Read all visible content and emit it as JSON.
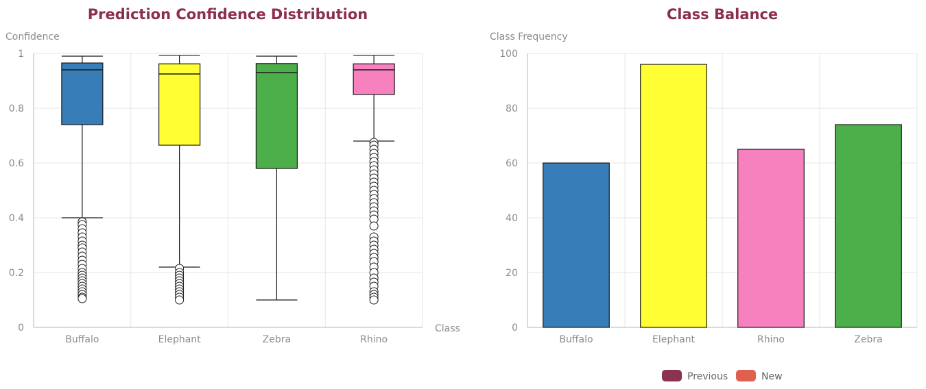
{
  "colors": {
    "title": "#8b2e4f",
    "grid": "#e6e6e6",
    "axis": "#b5b5b5",
    "stroke": "#1a1a1a"
  },
  "chart_data": [
    {
      "type": "box",
      "title": "Prediction Confidence Distribution",
      "xlabel": "Class",
      "ylabel": "Confidence",
      "ylim": [
        0,
        1
      ],
      "yticks": [
        0,
        0.2,
        0.4,
        0.6,
        0.8,
        1
      ],
      "ytick_labels": [
        "0",
        "0.2",
        "0.4",
        "0.6",
        "0.8",
        "1"
      ],
      "grid": true,
      "categories": [
        "Buffalo",
        "Elephant",
        "Zebra",
        "Rhino"
      ],
      "colors": [
        "#377eb8",
        "#ffff33",
        "#4daf4a",
        "#f781bf"
      ],
      "boxes": [
        {
          "category": "Buffalo",
          "min": 0.4,
          "q1": 0.74,
          "median": 0.94,
          "q3": 0.965,
          "max": 0.99,
          "outliers": [
            0.385,
            0.375,
            0.36,
            0.345,
            0.33,
            0.315,
            0.3,
            0.29,
            0.275,
            0.26,
            0.245,
            0.23,
            0.215,
            0.2,
            0.19,
            0.18,
            0.17,
            0.16,
            0.15,
            0.14,
            0.13,
            0.12,
            0.11,
            0.105
          ]
        },
        {
          "category": "Elephant",
          "min": 0.22,
          "q1": 0.665,
          "median": 0.925,
          "q3": 0.962,
          "max": 0.993,
          "outliers": [
            0.215,
            0.2,
            0.19,
            0.18,
            0.17,
            0.16,
            0.15,
            0.14,
            0.13,
            0.12,
            0.11,
            0.1
          ]
        },
        {
          "category": "Zebra",
          "min": 0.1,
          "q1": 0.58,
          "median": 0.93,
          "q3": 0.963,
          "max": 0.99,
          "outliers": []
        },
        {
          "category": "Rhino",
          "min": 0.68,
          "q1": 0.85,
          "median": 0.94,
          "q3": 0.962,
          "max": 0.993,
          "outliers": [
            0.675,
            0.665,
            0.65,
            0.635,
            0.62,
            0.605,
            0.59,
            0.575,
            0.56,
            0.545,
            0.53,
            0.515,
            0.5,
            0.485,
            0.47,
            0.455,
            0.44,
            0.425,
            0.41,
            0.395,
            0.37,
            0.33,
            0.315,
            0.3,
            0.285,
            0.27,
            0.255,
            0.24,
            0.22,
            0.2,
            0.18,
            0.165,
            0.15,
            0.13,
            0.12,
            0.11,
            0.1
          ]
        }
      ]
    },
    {
      "type": "bar",
      "title": "Class Balance",
      "xlabel": "",
      "ylabel": "Class Frequency",
      "ylim": [
        0,
        100
      ],
      "yticks": [
        0,
        20,
        40,
        60,
        80,
        100
      ],
      "ytick_labels": [
        "0",
        "20",
        "40",
        "60",
        "80",
        "100"
      ],
      "grid": true,
      "categories": [
        "Buffalo",
        "Elephant",
        "Rhino",
        "Zebra"
      ],
      "values": [
        60,
        96,
        65,
        74
      ],
      "colors": [
        "#377eb8",
        "#ffff33",
        "#f781bf",
        "#4daf4a"
      ],
      "legend": {
        "position": "bottom-center",
        "entries": [
          {
            "label": "Previous",
            "color": "#8b3450"
          },
          {
            "label": "New",
            "color": "#e06050"
          }
        ]
      }
    }
  ]
}
